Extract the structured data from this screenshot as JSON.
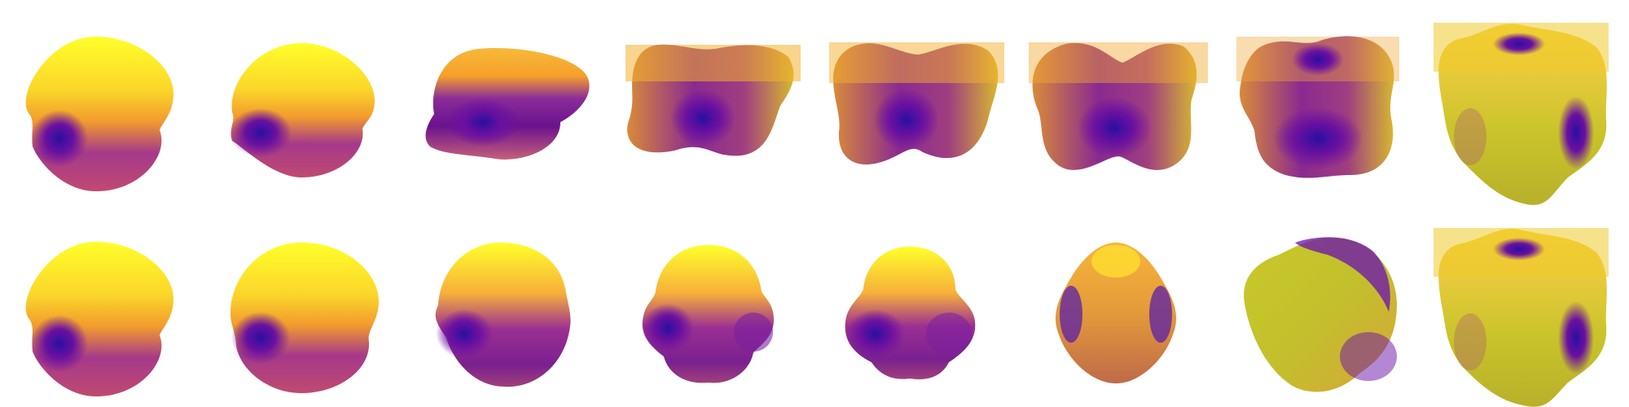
{
  "figure": {
    "rows": 2,
    "columns": 8,
    "background": "#ffffff",
    "colormap": [
      "#2a1aa8",
      "#6a0fa0",
      "#a23a86",
      "#d86a4a",
      "#f6a12a",
      "#fbd92e",
      "#ffff2a"
    ],
    "rows_content": [
      {
        "name": "top-row",
        "shapes": [
          "round-cap",
          "round-cap",
          "flattened-lozenge",
          "pinched-box",
          "pinched-box-deep",
          "butterfly",
          "dimpled-box",
          "cube-like"
        ]
      },
      {
        "name": "bottom-row",
        "shapes": [
          "round-cap",
          "round-dome",
          "tall-dome",
          "clover-dome",
          "clover-wide",
          "teardrop",
          "rounded-lump",
          "cube-like"
        ]
      }
    ]
  }
}
